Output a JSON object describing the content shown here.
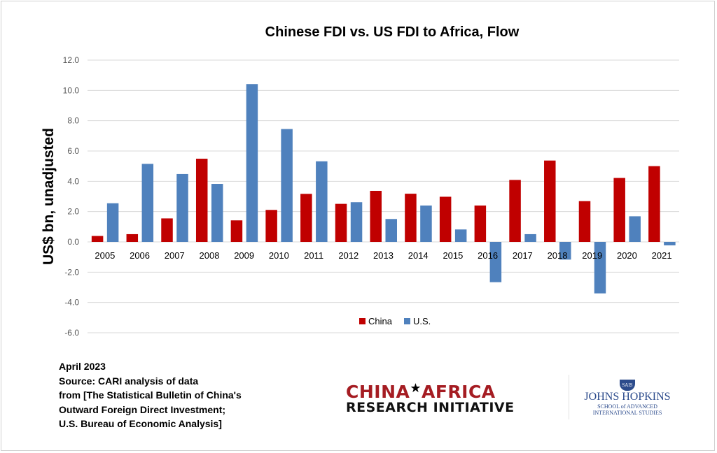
{
  "chart_data": {
    "type": "bar",
    "title": "Chinese FDI vs. US FDI to Africa, Flow",
    "xlabel": "",
    "ylabel": "US$ bn, unadjusted",
    "ylim": [
      -6,
      12
    ],
    "yticks": [
      "12.0",
      "10.0",
      "8.0",
      "6.0",
      "4.0",
      "2.0",
      "0.0",
      "-2.0",
      "-4.0",
      "-6.0"
    ],
    "grid": true,
    "legend_position": "bottom",
    "categories": [
      "2005",
      "2006",
      "2007",
      "2008",
      "2009",
      "2010",
      "2011",
      "2012",
      "2013",
      "2014",
      "2015",
      "2016",
      "2017",
      "2018",
      "2019",
      "2020",
      "2021"
    ],
    "series": [
      {
        "name": "China",
        "color": "#c00000",
        "values": [
          0.39,
          0.51,
          1.55,
          5.49,
          1.42,
          2.11,
          3.17,
          2.51,
          3.37,
          3.18,
          2.98,
          2.4,
          4.09,
          5.37,
          2.69,
          4.22,
          5.0
        ]
      },
      {
        "name": "U.S.",
        "color": "#4f81bd",
        "values": [
          2.55,
          5.15,
          4.48,
          3.83,
          10.42,
          7.45,
          5.32,
          2.62,
          1.51,
          2.4,
          0.82,
          -2.66,
          0.51,
          -1.17,
          -3.4,
          1.69,
          -0.23
        ]
      }
    ]
  },
  "notes": {
    "lines": [
      "April 2023",
      "Source: CARI analysis of data",
      "from [The Statistical Bulletin of China's",
      "Outward Foreign Direct Investment;",
      "U.S. Bureau of Economic Analysis]"
    ]
  },
  "logos": {
    "cari_line1_a": "CHINA",
    "cari_line1_b": "AFRICA",
    "cari_line2": "RESEARCH INITIATIVE",
    "jhu_shield": "SAIS",
    "jhu_name": "JOHNS HOPKINS",
    "jhu_school_1": "SCHOOL of ADVANCED",
    "jhu_school_2": "INTERNATIONAL STUDIES"
  }
}
